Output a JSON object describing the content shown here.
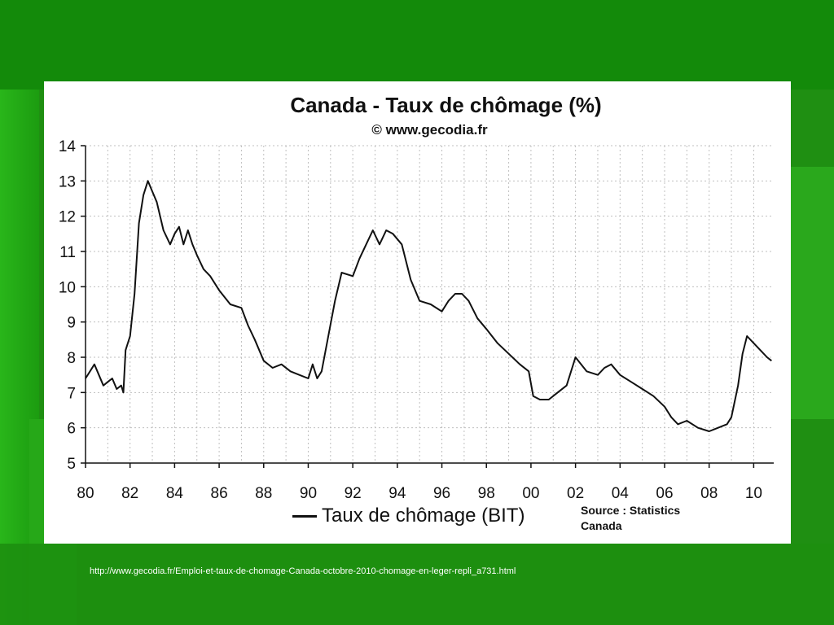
{
  "slide": {
    "source_url": "http://www.gecodia.fr/Emploi-et-taux-de-chomage-Canada-octobre-2010-chomage-en-leger-repli_a731.html"
  },
  "chart_data": {
    "type": "line",
    "title": "Canada - Taux de chômage (%)",
    "subtitle": "© www.gecodia.fr",
    "source_note": "Source : Statistics Canada",
    "xlabel": "",
    "ylabel": "",
    "xlim": [
      1980,
      2010.9
    ],
    "ylim": [
      5,
      14
    ],
    "x_ticks": [
      1980,
      1982,
      1984,
      1986,
      1988,
      1990,
      1992,
      1994,
      1996,
      1998,
      2000,
      2002,
      2004,
      2006,
      2008,
      2010
    ],
    "x_tick_labels": [
      "80",
      "82",
      "84",
      "86",
      "88",
      "90",
      "92",
      "94",
      "96",
      "98",
      "00",
      "02",
      "04",
      "06",
      "08",
      "10"
    ],
    "y_ticks": [
      5,
      6,
      7,
      8,
      9,
      10,
      11,
      12,
      13,
      14
    ],
    "y_tick_labels": [
      "5",
      "6",
      "7",
      "8",
      "9",
      "10",
      "11",
      "12",
      "13",
      "14"
    ],
    "grid": true,
    "legend_position": "bottom-center",
    "colors": {
      "line": "#111111",
      "grid": "#bfbfbf",
      "background": "#ffffff"
    },
    "series": [
      {
        "name": "Taux de chômage (BIT)",
        "x": [
          1980.0,
          1980.2,
          1980.4,
          1980.6,
          1980.8,
          1981.0,
          1981.2,
          1981.4,
          1981.6,
          1981.7,
          1981.8,
          1982.0,
          1982.2,
          1982.4,
          1982.6,
          1982.8,
          1983.0,
          1983.2,
          1983.5,
          1983.8,
          1984.0,
          1984.2,
          1984.4,
          1984.6,
          1984.8,
          1985.0,
          1985.3,
          1985.6,
          1986.0,
          1986.5,
          1987.0,
          1987.3,
          1987.6,
          1988.0,
          1988.4,
          1988.8,
          1989.2,
          1989.6,
          1990.0,
          1990.2,
          1990.4,
          1990.6,
          1990.9,
          1991.2,
          1991.5,
          1992.0,
          1992.3,
          1992.6,
          1992.9,
          1993.2,
          1993.5,
          1993.8,
          1994.2,
          1994.6,
          1995.0,
          1995.5,
          1996.0,
          1996.3,
          1996.6,
          1996.9,
          1997.2,
          1997.6,
          1998.0,
          1998.5,
          1999.0,
          1999.5,
          1999.9,
          2000.1,
          2000.4,
          2000.8,
          2001.2,
          2001.6,
          2002.0,
          2002.5,
          2003.0,
          2003.3,
          2003.6,
          2004.0,
          2004.5,
          2005.0,
          2005.5,
          2006.0,
          2006.3,
          2006.6,
          2007.0,
          2007.5,
          2008.0,
          2008.4,
          2008.8,
          2009.0,
          2009.3,
          2009.5,
          2009.7,
          2010.0,
          2010.3,
          2010.6,
          2010.8
        ],
        "values": [
          7.4,
          7.6,
          7.8,
          7.5,
          7.2,
          7.3,
          7.4,
          7.1,
          7.2,
          7.0,
          8.2,
          8.6,
          9.8,
          11.8,
          12.6,
          13.0,
          12.7,
          12.4,
          11.6,
          11.2,
          11.5,
          11.7,
          11.2,
          11.6,
          11.2,
          10.9,
          10.5,
          10.3,
          9.9,
          9.5,
          9.4,
          8.9,
          8.5,
          7.9,
          7.7,
          7.8,
          7.6,
          7.5,
          7.4,
          7.8,
          7.4,
          7.6,
          8.6,
          9.6,
          10.4,
          10.3,
          10.8,
          11.2,
          11.6,
          11.2,
          11.6,
          11.5,
          11.2,
          10.2,
          9.6,
          9.5,
          9.3,
          9.6,
          9.8,
          9.8,
          9.6,
          9.1,
          8.8,
          8.4,
          8.1,
          7.8,
          7.6,
          6.9,
          6.8,
          6.8,
          7.0,
          7.2,
          8.0,
          7.6,
          7.5,
          7.7,
          7.8,
          7.5,
          7.3,
          7.1,
          6.9,
          6.6,
          6.3,
          6.1,
          6.2,
          6.0,
          5.9,
          6.0,
          6.1,
          6.3,
          7.2,
          8.1,
          8.6,
          8.4,
          8.2,
          8.0,
          7.9
        ]
      }
    ]
  }
}
